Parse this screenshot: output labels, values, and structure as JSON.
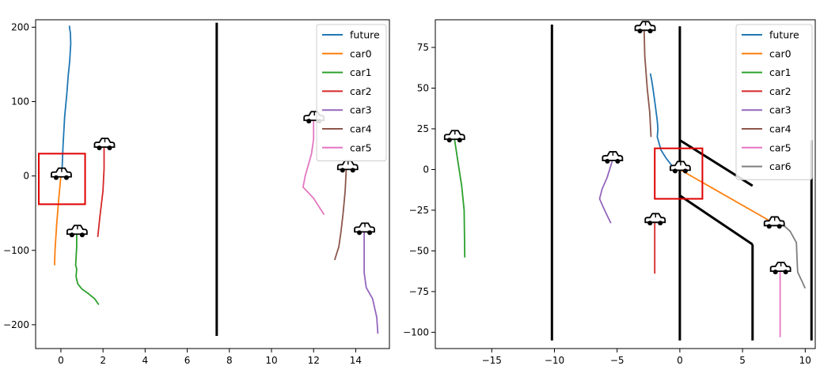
{
  "chart_data": [
    {
      "type": "line",
      "xlim": [
        -1.2,
        15.6
      ],
      "ylim": [
        -232,
        210
      ],
      "xticks": [
        0,
        2,
        4,
        6,
        8,
        10,
        12,
        14
      ],
      "yticks": [
        -200,
        -100,
        0,
        100,
        200
      ],
      "grid": false,
      "legend": "top-right",
      "series": [
        {
          "name": "future",
          "color": "#1f77b4",
          "x": [
            0.05,
            0.1,
            0.18,
            0.28,
            0.35,
            0.42,
            0.45,
            0.47,
            0.45,
            0.4
          ],
          "y": [
            5,
            40,
            80,
            110,
            135,
            155,
            170,
            178,
            192,
            202
          ]
        },
        {
          "name": "car0",
          "color": "#ff7f0e",
          "x": [
            0,
            -0.1,
            -0.2,
            -0.28,
            -0.3
          ],
          "y": [
            0,
            -30,
            -65,
            -100,
            -120
          ]
        },
        {
          "name": "car1",
          "color": "#2ca02c",
          "x": [
            0.75,
            0.75,
            0.72,
            0.7,
            0.75,
            0.72,
            0.8,
            1.0,
            1.3,
            1.6,
            1.8
          ],
          "y": [
            -75,
            -95,
            -110,
            -120,
            -125,
            -135,
            -145,
            -152,
            -158,
            -165,
            -173
          ]
        },
        {
          "name": "car2",
          "color": "#d62728",
          "x": [
            2.05,
            2.05,
            2.0,
            1.85,
            1.75
          ],
          "y": [
            40,
            10,
            -20,
            -55,
            -82
          ]
        },
        {
          "name": "car3",
          "color": "#9467bd",
          "x": [
            14.4,
            14.4,
            14.4,
            14.5,
            14.8,
            15.0,
            15.05
          ],
          "y": [
            -73,
            -100,
            -130,
            -150,
            -165,
            -190,
            -212
          ]
        },
        {
          "name": "car4",
          "color": "#8c564b",
          "x": [
            13.55,
            13.5,
            13.4,
            13.3,
            13.2,
            13.0
          ],
          "y": [
            10,
            -20,
            -50,
            -75,
            -95,
            -113
          ]
        },
        {
          "name": "car5",
          "color": "#e377c2",
          "x": [
            12.0,
            12.0,
            11.9,
            11.6,
            11.5,
            12.0,
            12.5
          ],
          "y": [
            75,
            50,
            30,
            0,
            -15,
            -30,
            -52
          ]
        }
      ],
      "walls": [
        {
          "x": [
            7.4,
            7.4
          ],
          "y": [
            206,
            -215
          ]
        }
      ],
      "cars": [
        {
          "x": 0,
          "y": 2
        },
        {
          "x": 2.05,
          "y": 42
        },
        {
          "x": 0.75,
          "y": -75
        },
        {
          "x": 12.0,
          "y": 78
        },
        {
          "x": 13.6,
          "y": 12
        },
        {
          "x": 14.4,
          "y": -72
        }
      ],
      "highlight_box": {
        "x": [
          -1.05,
          1.15
        ],
        "y": [
          -38,
          30
        ]
      }
    },
    {
      "type": "line",
      "xlim": [
        -19.5,
        10.8
      ],
      "ylim": [
        -110,
        92
      ],
      "xticks": [
        -15,
        -10,
        -5,
        0,
        5,
        10
      ],
      "yticks": [
        -100,
        -75,
        -50,
        -25,
        0,
        25,
        50,
        75
      ],
      "grid": false,
      "legend": "top-right",
      "series": [
        {
          "name": "future",
          "color": "#1f77b4",
          "x": [
            -0.6,
            -1.1,
            -1.5,
            -1.8,
            -1.75,
            -1.8,
            -2.0,
            -2.15,
            -2.25,
            -2.35
          ],
          "y": [
            2,
            7,
            12,
            20,
            25,
            30,
            42,
            50,
            55,
            59
          ]
        },
        {
          "name": "car0",
          "color": "#ff7f0e",
          "x": [
            0,
            7.5
          ],
          "y": [
            0,
            -33
          ]
        },
        {
          "name": "car1",
          "color": "#2ca02c",
          "x": [
            -18.0,
            -17.7,
            -17.4,
            -17.2,
            -17.15
          ],
          "y": [
            20,
            5,
            -10,
            -25,
            -54
          ]
        },
        {
          "name": "car2",
          "color": "#d62728",
          "x": [
            -2.0,
            -2.0
          ],
          "y": [
            -30,
            -64
          ]
        },
        {
          "name": "car3",
          "color": "#9467bd",
          "x": [
            -5.4,
            -5.8,
            -6.2,
            -6.4,
            -6.0,
            -5.5
          ],
          "y": [
            5,
            -5,
            -12,
            -18,
            -25,
            -33
          ]
        },
        {
          "name": "car4",
          "color": "#8c564b",
          "x": [
            -2.85,
            -2.8,
            -2.6,
            -2.4,
            -2.3
          ],
          "y": [
            86,
            70,
            50,
            35,
            20
          ]
        },
        {
          "name": "car5",
          "color": "#e377c2",
          "x": [
            8.0,
            8.0
          ],
          "y": [
            -60,
            -103
          ]
        },
        {
          "name": "car6",
          "color": "#7f7f7f",
          "x": [
            8.1,
            8.8,
            9.3,
            9.35,
            9.4,
            9.7,
            10.0
          ],
          "y": [
            -33,
            -38,
            -45,
            -55,
            -63,
            -68,
            -73
          ]
        }
      ],
      "walls": [
        {
          "x": [
            -10.2,
            -10.2
          ],
          "y": [
            89,
            -105
          ]
        },
        {
          "x": [
            0,
            0
          ],
          "y": [
            88,
            -105
          ]
        },
        {
          "x": [
            0,
            5.8
          ],
          "y": [
            18,
            -10
          ]
        },
        {
          "x": [
            0,
            5.8
          ],
          "y": [
            -16,
            -46
          ]
        },
        {
          "x": [
            5.8,
            5.8
          ],
          "y": [
            -46,
            -105
          ]
        },
        {
          "x": [
            10.5,
            10.5
          ],
          "y": [
            18,
            -105
          ]
        }
      ],
      "cars": [
        {
          "x": -2.8,
          "y": 87
        },
        {
          "x": -18.0,
          "y": 20
        },
        {
          "x": -5.4,
          "y": 7
        },
        {
          "x": 0,
          "y": 1
        },
        {
          "x": -2.0,
          "y": -31
        },
        {
          "x": 7.5,
          "y": -33
        },
        {
          "x": 8.0,
          "y": -61
        }
      ],
      "highlight_box": {
        "x": [
          -2.0,
          1.8
        ],
        "y": [
          -18,
          13
        ]
      }
    }
  ]
}
